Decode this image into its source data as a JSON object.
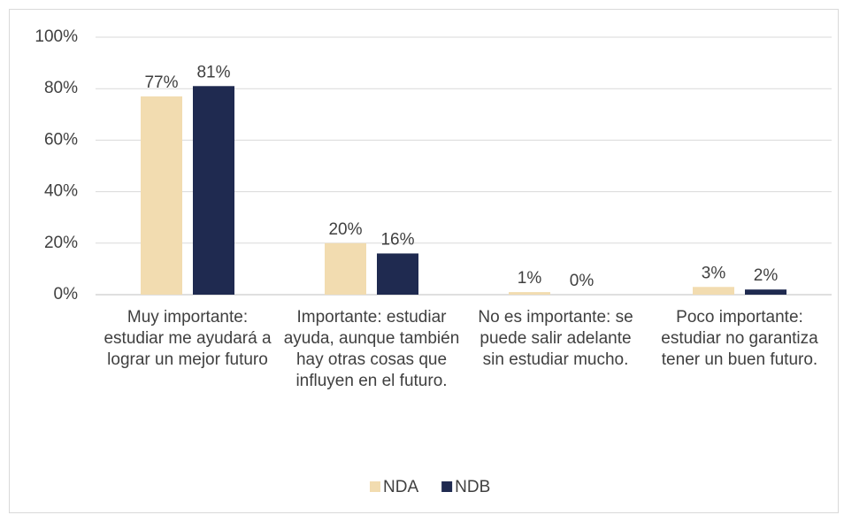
{
  "chart_data": {
    "type": "bar",
    "categories": [
      "Muy importante: estudiar me ayudará a lograr un mejor futuro",
      "Importante: estudiar ayuda, aunque también hay otras cosas que influyen en el futuro.",
      "No es importante: se puede salir adelante sin estudiar mucho.",
      "Poco importante: estudiar no garantiza tener un buen futuro."
    ],
    "series": [
      {
        "name": "NDA",
        "color": "#f2dcb0",
        "values": [
          77,
          20,
          1,
          3
        ],
        "value_labels": [
          "77%",
          "20%",
          "1%",
          "3%"
        ]
      },
      {
        "name": "NDB",
        "color": "#1f2a50",
        "values": [
          81,
          16,
          0,
          2
        ],
        "value_labels": [
          "81%",
          "16%",
          "0%",
          "2%"
        ]
      }
    ],
    "ylim": [
      0,
      100
    ],
    "yticks": [
      {
        "value": 0,
        "label": "0%"
      },
      {
        "value": 20,
        "label": "20%"
      },
      {
        "value": 40,
        "label": "40%"
      },
      {
        "value": 60,
        "label": "60%"
      },
      {
        "value": 80,
        "label": "80%"
      },
      {
        "value": 100,
        "label": "100%"
      }
    ],
    "grid": true,
    "legend": "bottom"
  }
}
